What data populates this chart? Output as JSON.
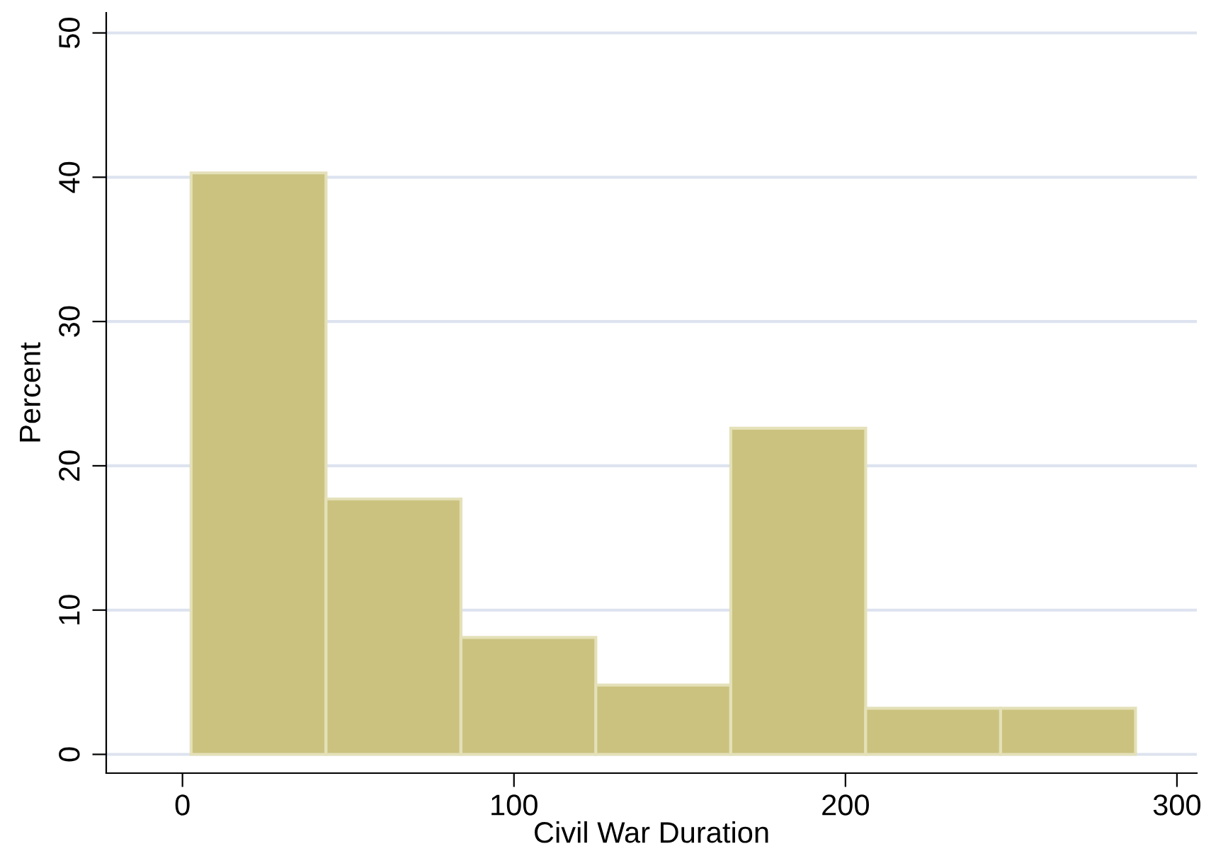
{
  "chart_data": {
    "type": "histogram",
    "xlabel": "Civil War Duration",
    "ylabel": "Percent",
    "bins": [
      2.6,
      43.3,
      84.0,
      124.7,
      165.4,
      206.1,
      246.8,
      287.5
    ],
    "values": [
      40.3,
      17.7,
      8.1,
      4.8,
      22.6,
      3.2,
      3.2
    ],
    "color": "#cbc27f",
    "xlim": [
      -23,
      306
    ],
    "xticks": [
      0,
      100,
      200,
      300
    ],
    "ylim": [
      -1.3,
      51.4
    ],
    "yticks": [
      0,
      10,
      20,
      30,
      40,
      50
    ],
    "grid": "y"
  }
}
